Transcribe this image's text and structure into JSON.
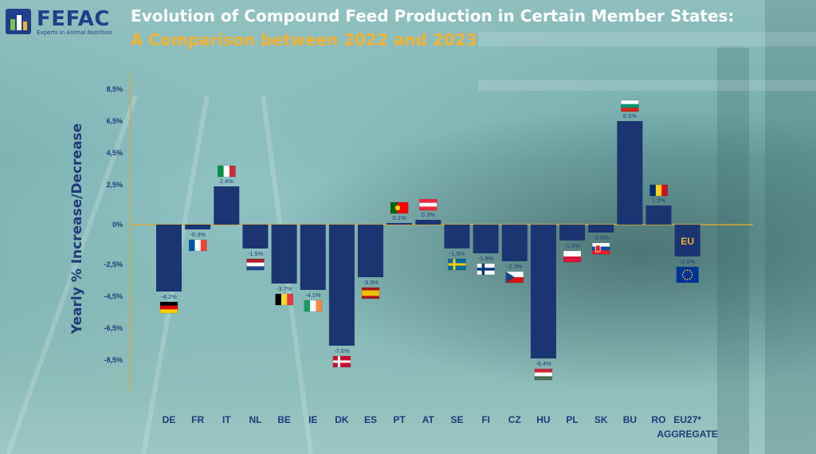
{
  "logo": {
    "name": "FEFAC",
    "tagline": "Experts in Animal Nutrition"
  },
  "title_line1": "Evolution of Compound Feed Production in Certain Member States:",
  "title_line2": "A Comparison between 2022 and 2023",
  "colors": {
    "bar": "#1b3572",
    "axis": "#d9a637",
    "title_accent": "#f2b233",
    "text": "#1f3a7a"
  },
  "chart_data": {
    "type": "bar",
    "title": "Evolution of Compound Feed Production in Certain Member States: A Comparison between 2022 and 2023",
    "xlabel": "",
    "ylabel": "Yearly % Increase/Decrease",
    "ylim": [
      -10.5,
      9.5
    ],
    "y_ticks": [
      8.5,
      6.5,
      4.5,
      2.5,
      0,
      -2.5,
      -4.5,
      -6.5,
      -8.5
    ],
    "y_tick_labels": [
      "8,5%",
      "6,5%",
      "4,5%",
      "2,5%",
      "0%",
      "-2,5%",
      "-4,5%",
      "-6,5%",
      "-8,5%"
    ],
    "categories": [
      "DE",
      "FR",
      "IT",
      "NL",
      "BE",
      "IE",
      "DK",
      "ES",
      "PT",
      "AT",
      "SE",
      "FI",
      "CZ",
      "HU",
      "PL",
      "SK",
      "BU",
      "RO",
      "EU27*"
    ],
    "category_sublabels": {
      "EU27*": "AGGREGATE"
    },
    "values": [
      -4.2,
      -0.3,
      2.4,
      -1.5,
      -3.7,
      -4.1,
      -7.6,
      -3.3,
      0.1,
      0.3,
      -1.5,
      -1.8,
      -2.3,
      -8.4,
      -1.0,
      -0.5,
      6.5,
      1.2,
      -2.0
    ],
    "data_labels": [
      "-4.2%",
      "-0.3%",
      "2.4%",
      "-1.5%",
      "-3.7%",
      "-4.1%",
      "-7.6%",
      "-3.3%",
      "0.1%",
      "0.3%",
      "-1.5%",
      "-1.8%",
      "-2.3%",
      "-8.4%",
      "-1.0%",
      "-0.5%",
      "6.5%",
      "1.2%",
      "-2.0%"
    ],
    "flags": [
      "germany-flag",
      "france-flag",
      "italy-flag",
      "netherlands-flag",
      "belgium-flag",
      "ireland-flag",
      "denmark-flag",
      "spain-flag",
      "portugal-flag",
      "austria-flag",
      "sweden-flag",
      "finland-flag",
      "czechia-flag",
      "hungary-flag",
      "poland-flag",
      "slovakia-flag",
      "bulgaria-flag",
      "romania-flag",
      "eu-flag"
    ],
    "bar_badge": {
      "EU27*": "EU"
    },
    "grid": false
  }
}
